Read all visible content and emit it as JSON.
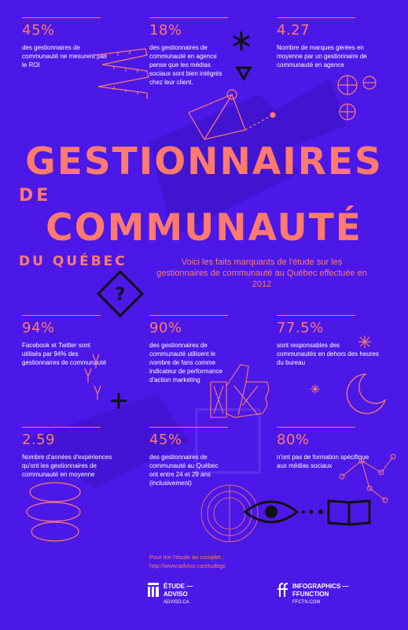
{
  "title": {
    "line1": "GESTIONNAIRES",
    "line2": "DE",
    "line3": "COMMUNAUTÉ",
    "line4": "DU QUÉBEC"
  },
  "intro": "Voici les faits marquants de l'étude sur les gestionnaires de communauté au Québec effectuée en 2012",
  "stats": [
    {
      "value": "45%",
      "text": "des gestionnaires de communauté ne mesurent pas le ROI"
    },
    {
      "value": "18%",
      "text": "des gestionnaires de communauté en agence pense que les médias sociaux sont bien intégrés chez leur client."
    },
    {
      "value": "4.27",
      "text": "Nombre de marques gérées en moyenne par un gestionnaire de communauté en agence"
    },
    {
      "value": "94%",
      "text": "Facebook et Twitter sont utilisés par 94% des gestionnaires de communauté"
    },
    {
      "value": "90%",
      "text": "des gestionnaires de communauté utilisent le nombre de fans comme indicateur de performance d'action marketing"
    },
    {
      "value": "77.5%",
      "text": "sont responsables des communautés en dehors des heures du bureau"
    },
    {
      "value": "2.59",
      "text": "Nombre d'années d'expériences qu'ont les gestionnaires de communauté en moyenne"
    },
    {
      "value": "45%",
      "text": "des gestionnaires de communauté au Québec ont entre 24 et 29 ans (inclusivement)"
    },
    {
      "value": "80%",
      "text": "n'ont pas de formation spécifique aux médias sociaux"
    }
  ],
  "footer": {
    "read_more": "Pour lire l'étude au complet :",
    "url": "http://www.adviso.ca/etudegc",
    "brand1": {
      "line1": "ÉTUDE —",
      "line2": "ADVISO",
      "site": "ADVISO.CA"
    },
    "brand2": {
      "line1": "INFOGRAPHICS —",
      "line2": "FFUNCTION",
      "site": "FFCTN.COM"
    }
  },
  "colors": {
    "background": "#4b18e8",
    "accent": "#ff7a6e",
    "text": "#ffffff",
    "shadow": "#3a10c0"
  }
}
